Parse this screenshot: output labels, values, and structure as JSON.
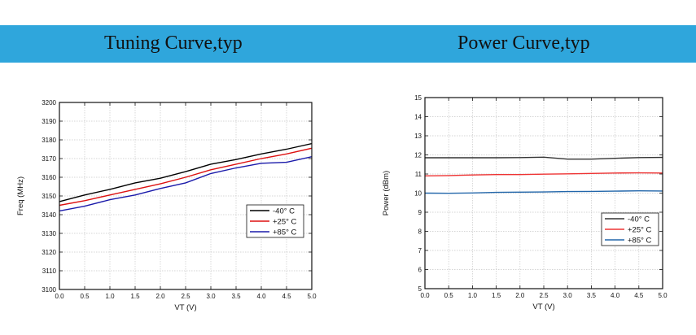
{
  "banner": {
    "left_title": "Tuning Curve,typ",
    "right_title": "Power Curve,typ",
    "color": "#2fa6dc"
  },
  "chart_data": [
    {
      "type": "line",
      "title": "Tuning Curve,typ",
      "xlabel": "VT (V)",
      "ylabel": "Freq (MHz)",
      "xlim": [
        0,
        5
      ],
      "ylim": [
        3100,
        3200
      ],
      "xticks": [
        0,
        0.5,
        1,
        1.5,
        2,
        2.5,
        3,
        3.5,
        4,
        4.5,
        5
      ],
      "xtick_labels": [
        "0.0",
        "0.5",
        "1.0",
        "1.5",
        "2.0",
        "2.5",
        "3.0",
        "3.5",
        "4.0",
        "4.5",
        "5.0"
      ],
      "yticks": [
        3100,
        3110,
        3120,
        3130,
        3140,
        3150,
        3160,
        3170,
        3180,
        3190,
        3200
      ],
      "ytick_labels": [
        "3100",
        "3110",
        "3120",
        "3130",
        "3140",
        "3150",
        "3160",
        "3170",
        "3180",
        "3190",
        "3200"
      ],
      "grid": true,
      "legend_position": "right",
      "x": [
        0,
        0.5,
        1,
        1.5,
        2,
        2.5,
        3,
        3.5,
        4,
        4.5,
        5
      ],
      "series": [
        {
          "name": "-40° C",
          "color": "#000000",
          "values": [
            3147,
            3150.5,
            3153.5,
            3157,
            3159.5,
            3163,
            3167,
            3169.5,
            3172.5,
            3175,
            3178
          ]
        },
        {
          "name": "+25° C",
          "color": "#dd1111",
          "values": [
            3145,
            3147.5,
            3150.5,
            3153.5,
            3156.5,
            3160,
            3164,
            3167,
            3170,
            3172.5,
            3175.5
          ]
        },
        {
          "name": "+85° C",
          "color": "#1a1aaa",
          "values": [
            3142,
            3144.5,
            3148,
            3150.5,
            3154,
            3157,
            3162,
            3165,
            3167.5,
            3168,
            3171
          ]
        }
      ]
    },
    {
      "type": "line",
      "title": "Power Curve,typ",
      "xlabel": "VT (V)",
      "ylabel": "Power (dBm)",
      "xlim": [
        0,
        5
      ],
      "ylim": [
        5,
        15
      ],
      "xticks": [
        0,
        0.5,
        1,
        1.5,
        2,
        2.5,
        3,
        3.5,
        4,
        4.5,
        5
      ],
      "xtick_labels": [
        "0.0",
        "0.5",
        "1.0",
        "1.5",
        "2.0",
        "2.5",
        "3.0",
        "3.5",
        "4.0",
        "4.5",
        "5.0"
      ],
      "yticks": [
        5,
        6,
        7,
        8,
        9,
        10,
        11,
        12,
        13,
        14,
        15
      ],
      "ytick_labels": [
        "5",
        "6",
        "7",
        "8",
        "9",
        "10",
        "11",
        "12",
        "13",
        "14",
        "15"
      ],
      "grid": true,
      "legend_position": "bottom-right",
      "x": [
        0,
        0.5,
        1,
        1.5,
        2,
        2.5,
        3,
        3.5,
        4,
        4.5,
        5
      ],
      "series": [
        {
          "name": "-40° C",
          "color": "#333333",
          "values": [
            11.85,
            11.85,
            11.85,
            11.85,
            11.86,
            11.88,
            11.78,
            11.78,
            11.82,
            11.86,
            11.87
          ]
        },
        {
          "name": "+25° C",
          "color": "#ee3333",
          "values": [
            10.9,
            10.92,
            10.95,
            10.97,
            10.97,
            10.99,
            11.01,
            11.03,
            11.05,
            11.06,
            11.05
          ]
        },
        {
          "name": "+85° C",
          "color": "#2266aa",
          "values": [
            10.0,
            9.99,
            10.01,
            10.04,
            10.05,
            10.06,
            10.08,
            10.09,
            10.1,
            10.12,
            10.11
          ]
        }
      ]
    }
  ]
}
